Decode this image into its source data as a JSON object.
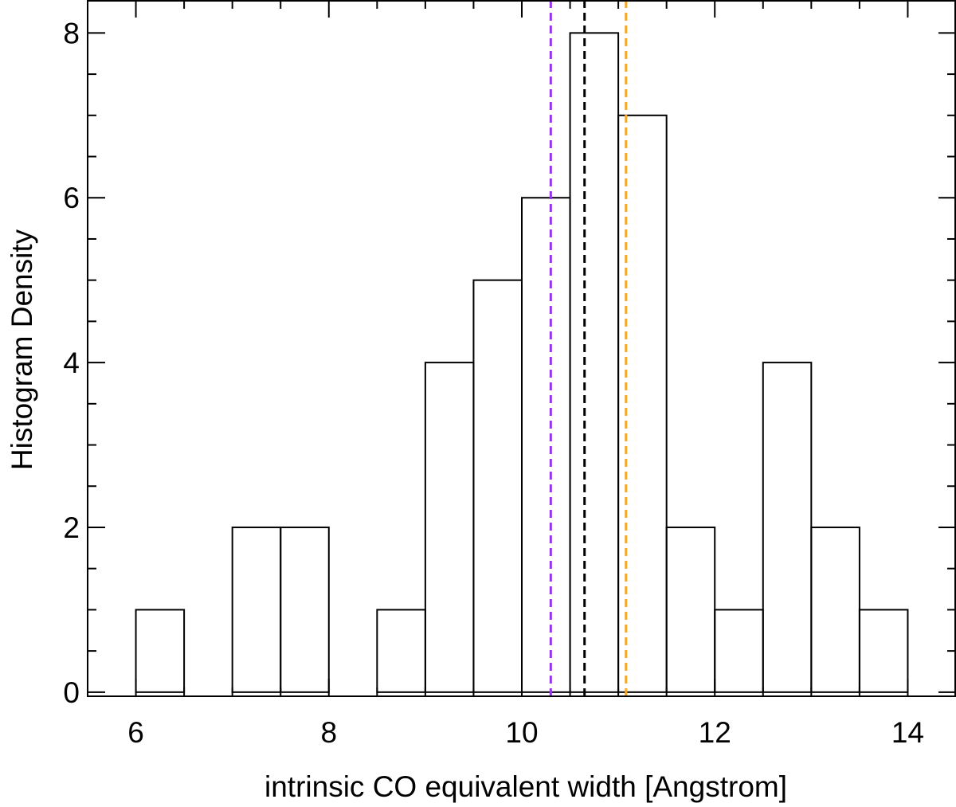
{
  "chart_data": {
    "type": "bar",
    "xlabel": "intrinsic CO equivalent width [Angstrom]",
    "ylabel": "Histogram Density",
    "xlim": [
      5.5,
      14.5
    ],
    "ylim": [
      -0.05,
      8.4
    ],
    "x_ticks": [
      6,
      8,
      10,
      12,
      14
    ],
    "x_tick_labels": [
      "6",
      "8",
      "10",
      "12",
      "14"
    ],
    "x_minor_step": 0.5,
    "y_ticks": [
      0,
      2,
      4,
      6,
      8
    ],
    "y_tick_labels": [
      "0",
      "2",
      "4",
      "6",
      "8"
    ],
    "y_minor_step": 0.5,
    "bin_width": 0.5,
    "bins": [
      {
        "x0": 6.0,
        "x1": 6.5,
        "value": 1
      },
      {
        "x0": 6.5,
        "x1": 7.0,
        "value": 0
      },
      {
        "x0": 7.0,
        "x1": 7.5,
        "value": 2
      },
      {
        "x0": 7.5,
        "x1": 8.0,
        "value": 2
      },
      {
        "x0": 8.0,
        "x1": 8.5,
        "value": 0
      },
      {
        "x0": 8.5,
        "x1": 9.0,
        "value": 1
      },
      {
        "x0": 9.0,
        "x1": 9.5,
        "value": 4
      },
      {
        "x0": 9.5,
        "x1": 10.0,
        "value": 5
      },
      {
        "x0": 10.0,
        "x1": 10.5,
        "value": 6
      },
      {
        "x0": 10.5,
        "x1": 11.0,
        "value": 8
      },
      {
        "x0": 11.0,
        "x1": 11.5,
        "value": 7
      },
      {
        "x0": 11.5,
        "x1": 12.0,
        "value": 2
      },
      {
        "x0": 12.0,
        "x1": 12.5,
        "value": 1
      },
      {
        "x0": 12.5,
        "x1": 13.0,
        "value": 4
      },
      {
        "x0": 13.0,
        "x1": 13.5,
        "value": 2
      },
      {
        "x0": 13.5,
        "x1": 14.0,
        "value": 1
      }
    ],
    "reference_lines": [
      {
        "x": 10.3,
        "color": "#9933ee",
        "style": "dashed"
      },
      {
        "x": 10.65,
        "color": "#000000",
        "style": "dashed"
      },
      {
        "x": 11.08,
        "color": "#f5a623",
        "style": "dashed"
      }
    ],
    "grid": false,
    "legend": "none"
  }
}
